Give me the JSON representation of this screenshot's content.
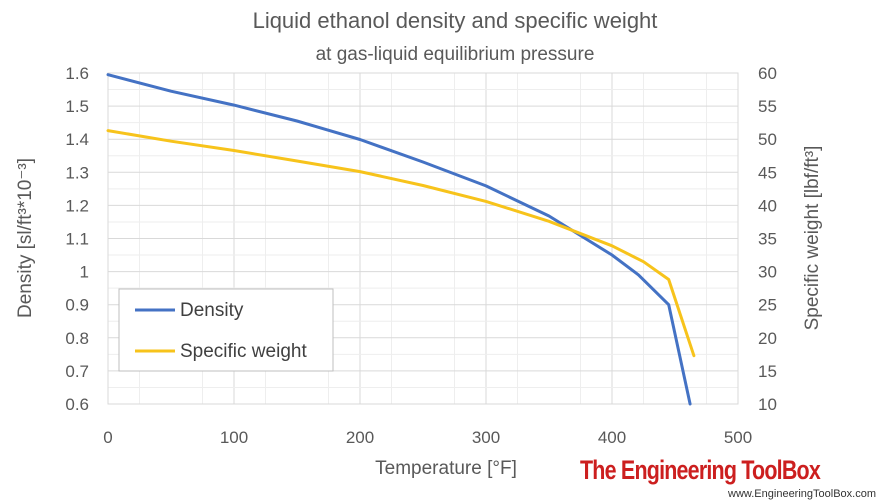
{
  "chart_data": {
    "type": "line",
    "title": "Liquid ethanol density and specific weight",
    "subtitle": "at gas-liquid equilibrium pressure",
    "xlabel": "Temperature [°F]",
    "ylabel_left": "Density [sl/ft³*10⁻³]",
    "ylabel_right": "Specific weight [lbf/ft³]",
    "xlim": [
      0,
      500
    ],
    "ylim_left": [
      0.6,
      1.6
    ],
    "ylim_right": [
      10,
      60
    ],
    "x_ticks": [
      "0",
      "100",
      "200",
      "300",
      "400",
      "500"
    ],
    "y_ticks_left": [
      "0.6",
      "0.7",
      "0.8",
      "0.9",
      "1",
      "1.1",
      "1.2",
      "1.3",
      "1.4",
      "1.5",
      "1.6"
    ],
    "y_ticks_right": [
      "10",
      "15",
      "20",
      "25",
      "30",
      "35",
      "40",
      "45",
      "50",
      "55",
      "60"
    ],
    "grid": true,
    "legend_position": "bottom-left",
    "series": [
      {
        "name": "Density",
        "axis": "left",
        "color": "#4472c4",
        "x": [
          0,
          50,
          100,
          150,
          200,
          250,
          300,
          350,
          400,
          421,
          445,
          462
        ],
        "y": [
          1.595,
          1.545,
          1.503,
          1.455,
          1.399,
          1.331,
          1.259,
          1.168,
          1.05,
          0.99,
          0.9,
          0.6
        ]
      },
      {
        "name": "Specific weight",
        "axis": "right",
        "color": "#f7c31b",
        "x": [
          0,
          50,
          100,
          150,
          200,
          250,
          300,
          350,
          400,
          425,
          445,
          465
        ],
        "y": [
          51.3,
          49.7,
          48.3,
          46.7,
          45.1,
          43.0,
          40.6,
          37.6,
          33.9,
          31.5,
          28.8,
          17.3
        ]
      }
    ]
  },
  "watermark": {
    "brand": "The Engineering ToolBox",
    "url": "www.EngineeringToolBox.com"
  }
}
